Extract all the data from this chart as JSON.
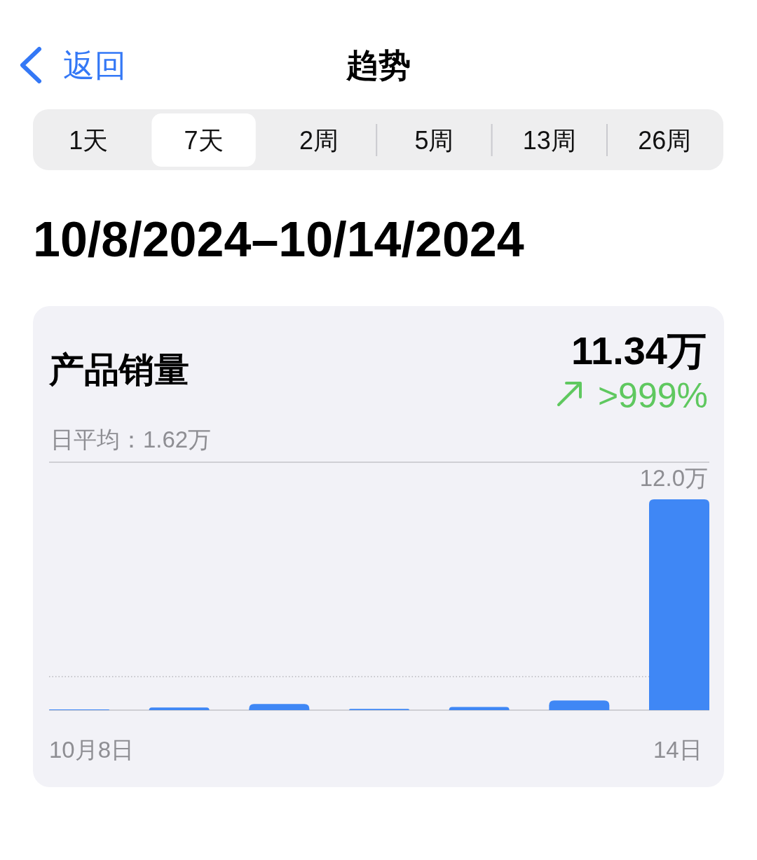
{
  "chart_data": {
    "type": "bar",
    "title": "产品销量",
    "subtitle": "日平均：1.62万",
    "categories": [
      "10月8日",
      null,
      null,
      null,
      null,
      null,
      "14日"
    ],
    "values": [
      0.03,
      0.13,
      0.3,
      0.06,
      0.15,
      0.47,
      10.2
    ],
    "color": "#3f87f5",
    "ylim": [
      0,
      12
    ],
    "yticks": [
      {
        "value": 0,
        "label": null
      },
      {
        "value": 12,
        "label": "12.0万"
      }
    ],
    "ref_lines": [
      {
        "axis": "y",
        "value": 1.62,
        "line_style": "dotted",
        "color": "#b8b8bd"
      }
    ],
    "annotations": [
      "返回",
      "趋势",
      "1天",
      "7天",
      "2周",
      "5周",
      "13周",
      "26周",
      "10/8/2024–10/14/2024",
      "11.34万",
      ">999%"
    ]
  }
}
